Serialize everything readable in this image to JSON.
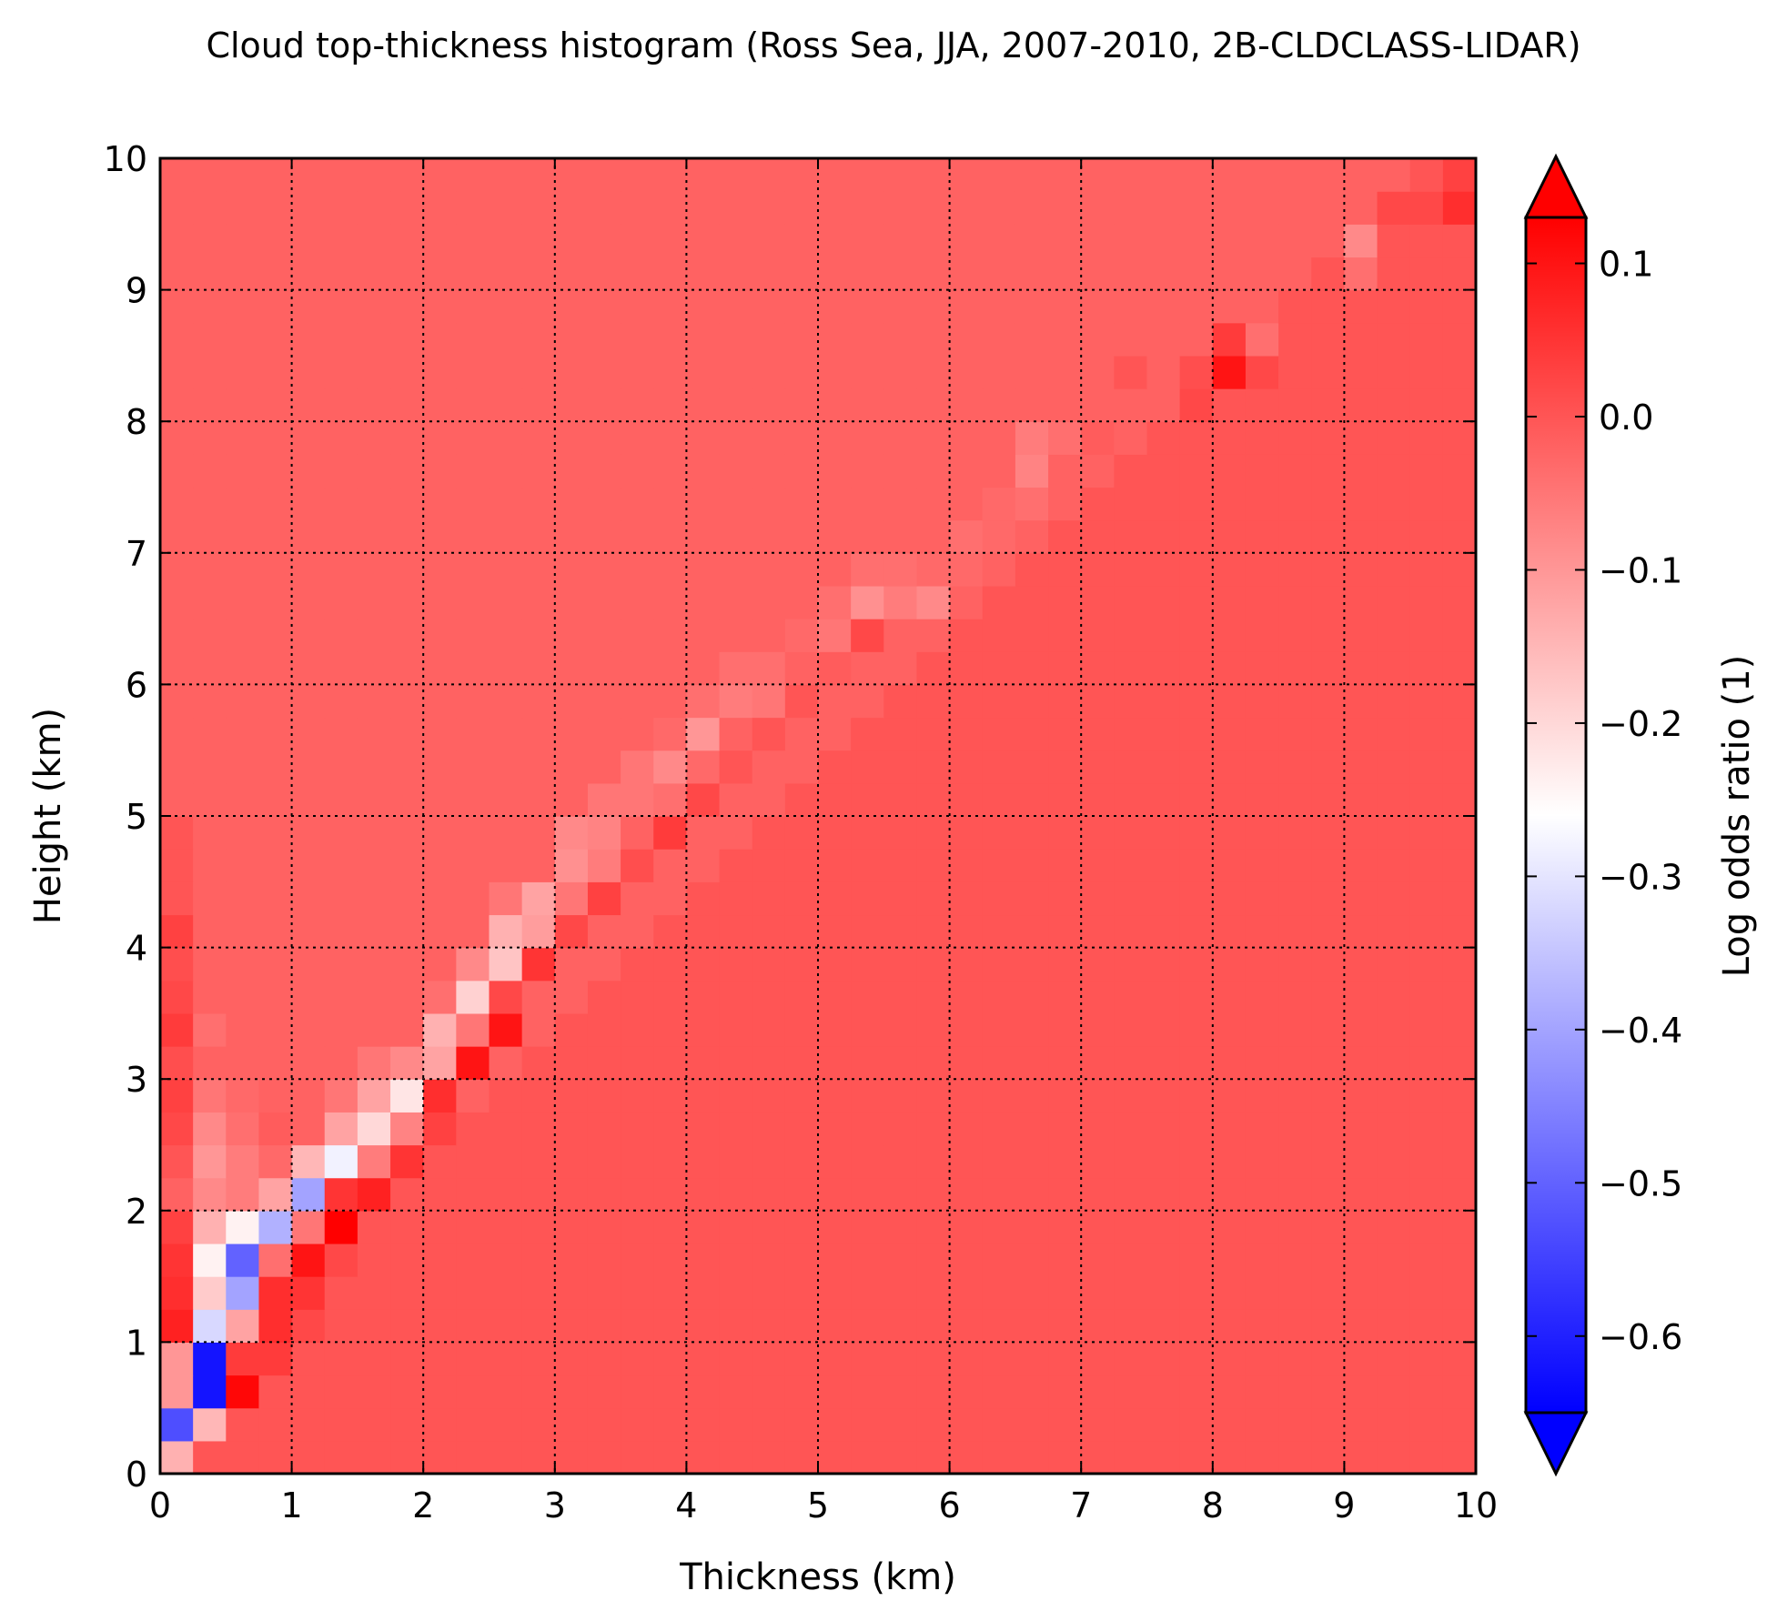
{
  "chart_data": {
    "type": "heatmap",
    "title": "Cloud top-thickness histogram (Ross Sea, JJA, 2007-2010, 2B-CLDCLASS-LIDAR)",
    "xlabel": "Thickness (km)",
    "ylabel": "Height (km)",
    "xlim": [
      0,
      10
    ],
    "ylim": [
      0,
      10
    ],
    "x_ticks": [
      "0",
      "1",
      "2",
      "3",
      "4",
      "5",
      "6",
      "7",
      "8",
      "9",
      "10"
    ],
    "y_ticks": [
      "0",
      "1",
      "2",
      "3",
      "4",
      "5",
      "6",
      "7",
      "8",
      "9",
      "10"
    ],
    "grid": true,
    "bins_x": 40,
    "bins_y": 40,
    "bin_size_km": 0.25,
    "colormap": "bwr",
    "colormap_colors": [
      "#0000ff",
      "#ffffff",
      "#ff0000"
    ],
    "colorbar": {
      "label": "Log odds ratio (1)",
      "range": [
        -0.65,
        0.13
      ],
      "ticks": [
        {
          "value": 0.1,
          "label": "0.1"
        },
        {
          "value": 0.0,
          "label": "0.0"
        },
        {
          "value": -0.1,
          "label": "−0.1"
        },
        {
          "value": -0.2,
          "label": "−0.2"
        },
        {
          "value": -0.3,
          "label": "−0.3"
        },
        {
          "value": -0.4,
          "label": "−0.4"
        },
        {
          "value": -0.5,
          "label": "−0.5"
        },
        {
          "value": -0.6,
          "label": "−0.6"
        }
      ],
      "extend": "both"
    },
    "background_value": 0.0,
    "upper_region_value": -0.02,
    "cells": [
      [
        0,
        0,
        -0.14
      ],
      [
        0,
        1,
        -0.53
      ],
      [
        0,
        2,
        -0.1
      ],
      [
        0,
        3,
        -0.1
      ],
      [
        0,
        4,
        0.08
      ],
      [
        0,
        5,
        0.06
      ],
      [
        0,
        6,
        0.05
      ],
      [
        0,
        7,
        0.03
      ],
      [
        0,
        8,
        -0.02
      ],
      [
        0,
        9,
        0.0
      ],
      [
        0,
        10,
        0.02
      ],
      [
        0,
        11,
        0.03
      ],
      [
        0,
        12,
        0.01
      ],
      [
        0,
        13,
        0.04
      ],
      [
        0,
        14,
        0.02
      ],
      [
        0,
        15,
        0.01
      ],
      [
        0,
        16,
        0.03
      ],
      [
        0,
        17,
        0.0
      ],
      [
        0,
        18,
        0.0
      ],
      [
        0,
        19,
        0.0
      ],
      [
        0,
        20,
        -0.02
      ],
      [
        1,
        0,
        0.0
      ],
      [
        1,
        1,
        -0.15
      ],
      [
        1,
        2,
        -0.62
      ],
      [
        1,
        3,
        -0.62
      ],
      [
        1,
        4,
        -0.32
      ],
      [
        1,
        5,
        -0.18
      ],
      [
        1,
        6,
        -0.24
      ],
      [
        1,
        7,
        -0.14
      ],
      [
        1,
        8,
        -0.08
      ],
      [
        1,
        9,
        -0.1
      ],
      [
        1,
        10,
        -0.08
      ],
      [
        1,
        11,
        -0.05
      ],
      [
        1,
        12,
        -0.02
      ],
      [
        1,
        13,
        -0.04
      ],
      [
        1,
        14,
        -0.02
      ],
      [
        2,
        0,
        0.0
      ],
      [
        2,
        1,
        0.0
      ],
      [
        2,
        2,
        0.12
      ],
      [
        2,
        3,
        0.04
      ],
      [
        2,
        4,
        -0.12
      ],
      [
        2,
        5,
        -0.4
      ],
      [
        2,
        6,
        -0.5
      ],
      [
        2,
        7,
        -0.24
      ],
      [
        2,
        8,
        -0.06
      ],
      [
        2,
        9,
        -0.06
      ],
      [
        2,
        10,
        -0.04
      ],
      [
        2,
        11,
        -0.03
      ],
      [
        2,
        12,
        -0.02
      ],
      [
        3,
        2,
        0.0
      ],
      [
        3,
        3,
        0.04
      ],
      [
        3,
        4,
        0.06
      ],
      [
        3,
        5,
        0.06
      ],
      [
        3,
        6,
        -0.04
      ],
      [
        3,
        7,
        -0.38
      ],
      [
        3,
        8,
        -0.12
      ],
      [
        3,
        9,
        -0.03
      ],
      [
        3,
        10,
        -0.01
      ],
      [
        4,
        4,
        0.02
      ],
      [
        4,
        5,
        0.05
      ],
      [
        4,
        6,
        0.1
      ],
      [
        4,
        7,
        -0.05
      ],
      [
        4,
        8,
        -0.4
      ],
      [
        4,
        9,
        -0.15
      ],
      [
        4,
        10,
        -0.02
      ],
      [
        5,
        6,
        0.02
      ],
      [
        5,
        7,
        0.13
      ],
      [
        5,
        8,
        0.05
      ],
      [
        5,
        9,
        -0.28
      ],
      [
        5,
        10,
        -0.12
      ],
      [
        5,
        11,
        -0.05
      ],
      [
        6,
        8,
        0.08
      ],
      [
        6,
        9,
        -0.06
      ],
      [
        6,
        10,
        -0.2
      ],
      [
        6,
        11,
        -0.12
      ],
      [
        6,
        12,
        -0.05
      ],
      [
        7,
        9,
        0.05
      ],
      [
        7,
        10,
        -0.07
      ],
      [
        7,
        11,
        -0.22
      ],
      [
        7,
        12,
        -0.08
      ],
      [
        8,
        10,
        0.03
      ],
      [
        8,
        11,
        0.06
      ],
      [
        8,
        12,
        -0.12
      ],
      [
        8,
        13,
        -0.14
      ],
      [
        8,
        14,
        -0.04
      ],
      [
        9,
        12,
        0.1
      ],
      [
        9,
        13,
        -0.05
      ],
      [
        9,
        14,
        -0.19
      ],
      [
        9,
        15,
        -0.08
      ],
      [
        10,
        13,
        0.1
      ],
      [
        10,
        14,
        0.02
      ],
      [
        10,
        15,
        -0.17
      ],
      [
        10,
        16,
        -0.14
      ],
      [
        10,
        17,
        -0.05
      ],
      [
        11,
        15,
        0.05
      ],
      [
        11,
        16,
        -0.11
      ],
      [
        11,
        17,
        -0.12
      ],
      [
        12,
        16,
        0.02
      ],
      [
        12,
        17,
        -0.05
      ],
      [
        12,
        18,
        -0.09
      ],
      [
        12,
        19,
        -0.08
      ],
      [
        13,
        17,
        0.03
      ],
      [
        13,
        18,
        -0.06
      ],
      [
        13,
        19,
        -0.07
      ],
      [
        13,
        20,
        -0.05
      ],
      [
        14,
        18,
        0.01
      ],
      [
        14,
        19,
        -0.02
      ],
      [
        14,
        20,
        -0.05
      ],
      [
        14,
        21,
        -0.05
      ],
      [
        15,
        19,
        0.04
      ],
      [
        15,
        20,
        -0.04
      ],
      [
        15,
        21,
        -0.08
      ],
      [
        15,
        22,
        -0.03
      ],
      [
        16,
        20,
        0.02
      ],
      [
        16,
        21,
        -0.03
      ],
      [
        16,
        22,
        -0.1
      ],
      [
        16,
        23,
        -0.04
      ],
      [
        17,
        21,
        0.0
      ],
      [
        17,
        22,
        -0.02
      ],
      [
        17,
        23,
        -0.06
      ],
      [
        17,
        24,
        -0.04
      ],
      [
        18,
        22,
        0.0
      ],
      [
        18,
        23,
        -0.05
      ],
      [
        18,
        24,
        -0.04
      ],
      [
        19,
        23,
        0.0
      ],
      [
        19,
        24,
        -0.02
      ],
      [
        19,
        25,
        -0.03
      ],
      [
        20,
        24,
        -0.01
      ],
      [
        20,
        25,
        -0.05
      ],
      [
        20,
        26,
        -0.04
      ],
      [
        21,
        25,
        0.02
      ],
      [
        21,
        26,
        -0.09
      ],
      [
        21,
        27,
        -0.04
      ],
      [
        22,
        26,
        -0.06
      ],
      [
        22,
        27,
        -0.04
      ],
      [
        23,
        26,
        -0.08
      ],
      [
        23,
        27,
        -0.03
      ],
      [
        24,
        27,
        -0.03
      ],
      [
        24,
        28,
        -0.04
      ],
      [
        25,
        28,
        -0.03
      ],
      [
        25,
        29,
        -0.03
      ],
      [
        26,
        29,
        -0.04
      ],
      [
        26,
        30,
        -0.07
      ],
      [
        26,
        31,
        -0.06
      ],
      [
        27,
        30,
        -0.02
      ],
      [
        27,
        31,
        -0.04
      ],
      [
        28,
        31,
        -0.01
      ],
      [
        28,
        32,
        -0.02
      ],
      [
        29,
        33,
        0.0
      ],
      [
        29,
        34,
        -0.02
      ],
      [
        31,
        32,
        0.02
      ],
      [
        31,
        33,
        0.01
      ],
      [
        32,
        33,
        0.1
      ],
      [
        32,
        34,
        0.04
      ],
      [
        33,
        33,
        0.02
      ],
      [
        33,
        34,
        -0.04
      ],
      [
        34,
        34,
        0.0
      ],
      [
        36,
        36,
        -0.04
      ],
      [
        36,
        37,
        -0.08
      ],
      [
        37,
        38,
        0.02
      ],
      [
        38,
        38,
        0.02
      ],
      [
        38,
        39,
        0.0
      ],
      [
        39,
        38,
        0.06
      ],
      [
        39,
        39,
        0.03
      ],
      [
        40,
        39,
        0.12
      ]
    ]
  }
}
